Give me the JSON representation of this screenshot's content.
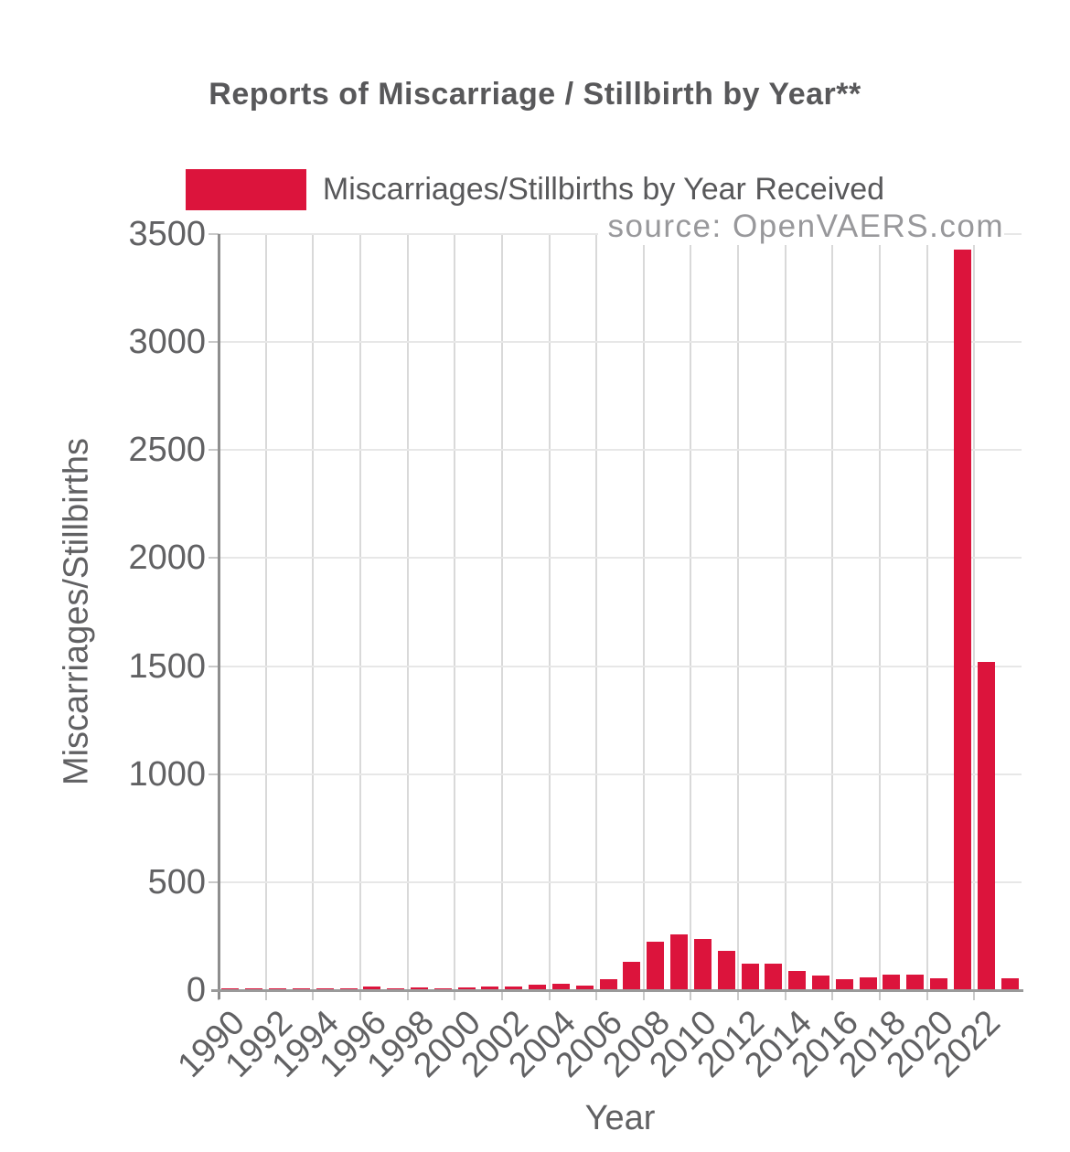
{
  "title": "Reports of Miscarriage / Stillbirth by Year**",
  "legend": {
    "label": "Miscarriages/Stillbirths by Year Received",
    "swatch_color": "#DC143C"
  },
  "source": "source: OpenVAERS.com",
  "chart_data": {
    "type": "bar",
    "title": "Reports of Miscarriage / Stillbirth by Year**",
    "xlabel": "Year",
    "ylabel": "Miscarriages/Stillbirths",
    "series_name": "Miscarriages/Stillbirths by Year Received",
    "categories": [
      "1990",
      "1991",
      "1992",
      "1993",
      "1994",
      "1995",
      "1996",
      "1997",
      "1998",
      "1999",
      "2000",
      "2001",
      "2002",
      "2003",
      "2004",
      "2005",
      "2006",
      "2007",
      "2008",
      "2009",
      "2010",
      "2011",
      "2012",
      "2013",
      "2014",
      "2015",
      "2016",
      "2017",
      "2018",
      "2019",
      "2020",
      "2021",
      "2022",
      "2023"
    ],
    "values": [
      7,
      6,
      7,
      7,
      6,
      8,
      17,
      9,
      11,
      6,
      13,
      19,
      18,
      26,
      29,
      21,
      50,
      131,
      225,
      257,
      235,
      180,
      122,
      122,
      90,
      68,
      52,
      60,
      73,
      73,
      56,
      3430,
      1520,
      56
    ],
    "ylim": [
      0,
      3500
    ],
    "yticks": [
      0,
      500,
      1000,
      1500,
      2000,
      2500,
      3000,
      3500
    ],
    "xticks_labeled": [
      "1990",
      "1992",
      "1994",
      "1996",
      "1998",
      "2000",
      "2002",
      "2004",
      "2006",
      "2008",
      "2010",
      "2012",
      "2014",
      "2016",
      "2018",
      "2020",
      "2022"
    ],
    "bar_color": "#DC143C",
    "grid": true,
    "legend_position": "top"
  },
  "colors": {
    "bar": "#DC143C",
    "title_text": "#58585A",
    "axis_text": "#616163",
    "source_text": "#98989B",
    "grid_horizontal": "#E7E7E7",
    "grid_vertical": "#D9D9D9",
    "axis_line": "#9A9A9A"
  }
}
